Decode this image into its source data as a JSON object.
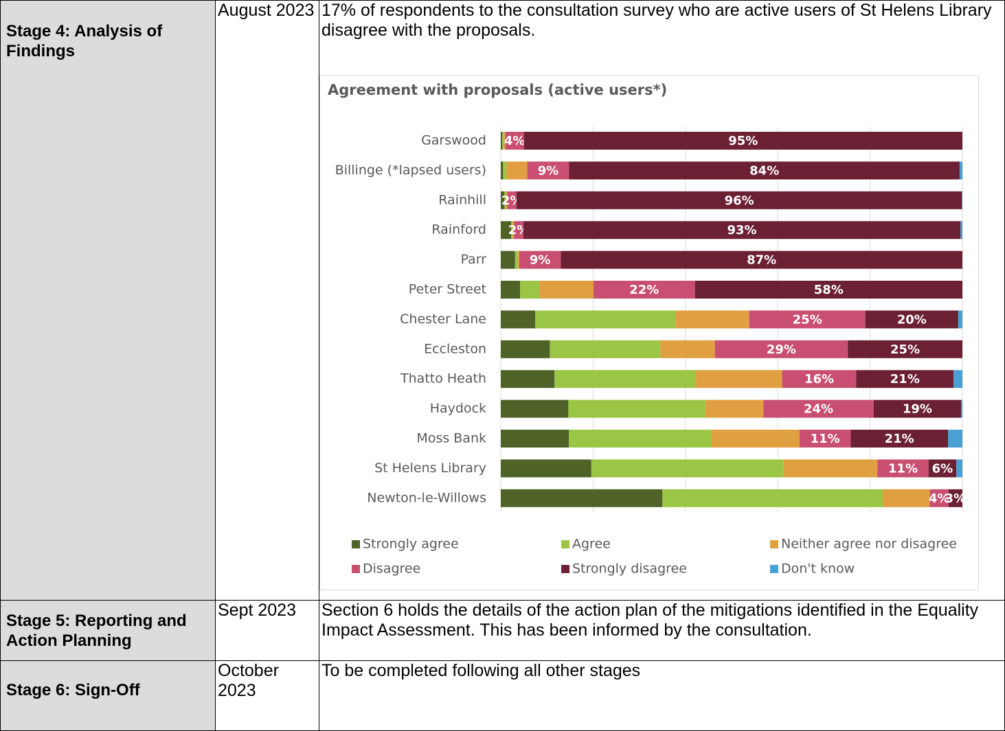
{
  "table": {
    "rows": [
      {
        "stage": "Stage 4: Analysis of Findings",
        "date": "August 2023",
        "text": "17% of respondents to the consultation survey who are active users of St Helens Library disagree with the proposals."
      },
      {
        "stage": "Stage 5: Reporting and Action Planning",
        "date": "Sept 2023",
        "text": "Section 6 holds the details of the action plan of the mitigations identified in the Equality Impact Assessment. This has been informed by the consultation."
      },
      {
        "stage": "Stage 6: Sign-Off",
        "date": "October 2023",
        "text": "To be completed following all other stages"
      }
    ]
  },
  "chart_data": {
    "type": "bar",
    "orientation": "horizontal",
    "stacked": true,
    "title": "Agreement with proposals (active users*)",
    "categories": [
      "Garswood",
      "Billinge (*lapsed users)",
      "Rainhill",
      "Rainford",
      "Parr",
      "Peter Street",
      "Chester Lane",
      "Eccleston",
      "Thatto Heath",
      "Haydock",
      "Moss Bank",
      "St Helens Library",
      "Newton-le-Willows"
    ],
    "series": [
      {
        "name": "Strongly agree",
        "color": "#4f6228",
        "values": [
          0.3,
          0.5,
          0.8,
          2.2,
          3.1,
          4.2,
          7.4,
          10.7,
          11.6,
          14.7,
          14.7,
          19.5,
          34.7
        ]
      },
      {
        "name": "Agree",
        "color": "#9bc545",
        "values": [
          0.4,
          0.7,
          0.3,
          0.3,
          0.6,
          4.3,
          30.2,
          24.1,
          30.5,
          29.8,
          30.7,
          41.4,
          47.3
        ]
      },
      {
        "name": "Neither agree nor disagree",
        "color": "#e09f40",
        "values": [
          0.3,
          4.5,
          0.3,
          0.3,
          0.3,
          11.6,
          15.9,
          11.9,
          18.6,
          12.6,
          19,
          20.2,
          10.1
        ]
      },
      {
        "name": "Disagree",
        "color": "#c94f72",
        "values": [
          4,
          9,
          2,
          2,
          9,
          22,
          25,
          29,
          16,
          24,
          11,
          11,
          4
        ],
        "value_labels": [
          "4%",
          "9%",
          "2%",
          "2%",
          "9%",
          "22%",
          "25%",
          "29%",
          "16%",
          "24%",
          "11%",
          "11%",
          "4%"
        ]
      },
      {
        "name": "Strongly disagree",
        "color": "#6b2034",
        "values": [
          95,
          84,
          96,
          93,
          87,
          58,
          20,
          25,
          21,
          19,
          21,
          6,
          3
        ],
        "value_labels": [
          "95%",
          "84%",
          "96%",
          "93%",
          "87%",
          "58%",
          "20%",
          "25%",
          "21%",
          "19%",
          "21%",
          "6%",
          "3%"
        ]
      },
      {
        "name": "Don't know",
        "color": "#4a9fd4",
        "values": [
          0,
          0.6,
          0.1,
          0.4,
          0,
          0,
          0.9,
          0,
          1.9,
          0.3,
          3.1,
          1.3,
          0
        ]
      }
    ],
    "xlim": [
      0,
      100
    ],
    "xticks": [
      0,
      20,
      40,
      60,
      80,
      100
    ],
    "grid": true,
    "legend": "bottom"
  }
}
